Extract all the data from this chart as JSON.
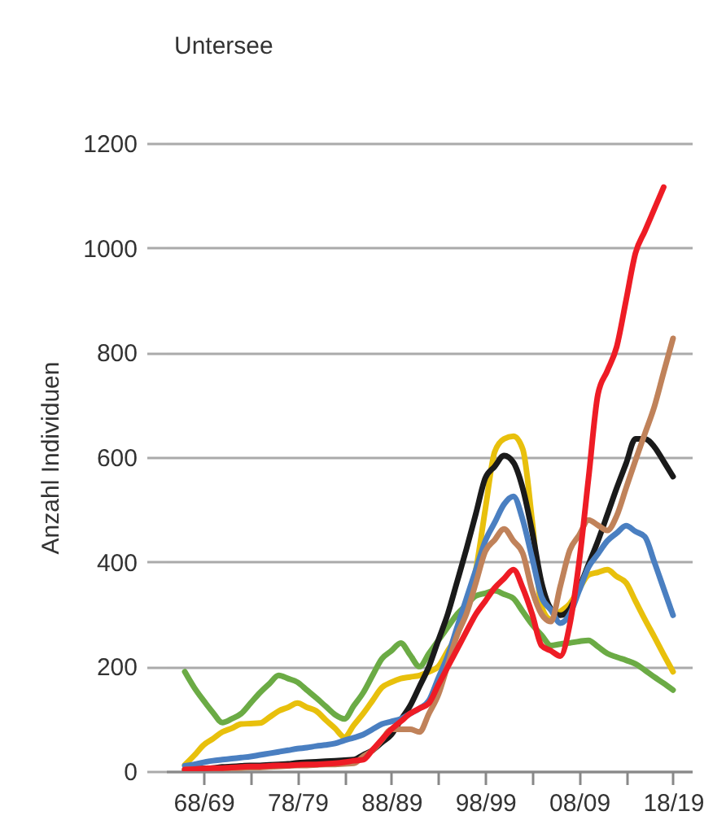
{
  "chart_data": {
    "type": "line",
    "title": "Untersee",
    "ylabel": "Anzahl Individuen",
    "ylim": [
      0,
      1200
    ],
    "yticks": [
      0,
      200,
      400,
      600,
      800,
      1000,
      1200
    ],
    "categories": [
      null,
      null,
      "68/69",
      null,
      null,
      null,
      null,
      null,
      null,
      null,
      null,
      null,
      "78/79",
      null,
      null,
      null,
      null,
      null,
      null,
      null,
      null,
      null,
      "88/89",
      null,
      null,
      null,
      null,
      null,
      null,
      null,
      null,
      null,
      "98/99",
      null,
      null,
      null,
      null,
      null,
      null,
      null,
      null,
      null,
      "08/09",
      null,
      null,
      null,
      null,
      null,
      null,
      null,
      null,
      null,
      "18/19"
    ],
    "grid": "y",
    "legend": false,
    "marker": "none",
    "line_style": "solid",
    "series": [
      {
        "color": "#6bab45",
        "values": [
          190,
          160,
          135,
          112,
          93,
          100,
          110,
          130,
          150,
          167,
          183,
          177,
          170,
          155,
          140,
          124,
          108,
          100,
          125,
          150,
          183,
          215,
          230,
          245,
          222,
          200,
          225,
          250,
          275,
          300,
          318,
          335,
          340,
          345,
          338,
          330,
          305,
          280,
          260,
          240,
          243,
          245,
          248,
          250,
          238,
          225,
          218,
          212,
          205,
          193,
          180,
          168,
          155
        ]
      },
      {
        "color": "#e8c00c",
        "values": [
          12,
          30,
          50,
          62,
          75,
          82,
          90,
          91,
          92,
          103,
          115,
          122,
          130,
          122,
          115,
          98,
          82,
          65,
          88,
          110,
          135,
          160,
          170,
          177,
          180,
          183,
          190,
          200,
          230,
          260,
          320,
          385,
          500,
          610,
          635,
          640,
          615,
          478,
          314,
          290,
          305,
          320,
          348,
          375,
          380,
          385,
          372,
          360,
          325,
          290,
          257,
          223,
          190
        ]
      },
      {
        "color": "#1a1a1a",
        "values": [
          3,
          4,
          5,
          6,
          8,
          9,
          10,
          11,
          11,
          12,
          13,
          14,
          16,
          17,
          18,
          19,
          20,
          21,
          22,
          31,
          40,
          55,
          70,
          98,
          125,
          162,
          200,
          250,
          300,
          362,
          425,
          492,
          560,
          582,
          603,
          590,
          540,
          457,
          360,
          310,
          298,
          310,
          350,
          395,
          440,
          490,
          541,
          588,
          635,
          635,
          620,
          592,
          563
        ]
      },
      {
        "color": "#4a7fc1",
        "values": [
          10,
          13,
          17,
          20,
          22,
          24,
          26,
          28,
          31,
          34,
          37,
          40,
          43,
          45,
          48,
          50,
          53,
          59,
          64,
          70,
          80,
          90,
          95,
          100,
          110,
          120,
          135,
          178,
          220,
          275,
          330,
          385,
          440,
          475,
          510,
          525,
          480,
          407,
          333,
          308,
          283,
          300,
          345,
          390,
          415,
          440,
          455,
          469,
          458,
          448,
          400,
          349,
          298
        ]
      },
      {
        "color": "#c0825a",
        "values": [
          3,
          4,
          4,
          5,
          5,
          6,
          6,
          7,
          7,
          8,
          9,
          10,
          11,
          11,
          12,
          13,
          13,
          14,
          15,
          28,
          40,
          60,
          80,
          80,
          80,
          75,
          110,
          146,
          203,
          260,
          301,
          360,
          420,
          442,
          463,
          440,
          416,
          345,
          300,
          286,
          354,
          422,
          451,
          480,
          470,
          460,
          488,
          541,
          594,
          645,
          696,
          762,
          827
        ]
      },
      {
        "color": "#ee1c25",
        "values": [
          3,
          4,
          5,
          6,
          6,
          7,
          8,
          9,
          9,
          10,
          11,
          11,
          12,
          13,
          13,
          14,
          15,
          17,
          20,
          22,
          41,
          61,
          80,
          95,
          110,
          120,
          130,
          165,
          199,
          233,
          267,
          300,
          325,
          350,
          368,
          385,
          350,
          300,
          240,
          230,
          220,
          280,
          400,
          560,
          720,
          765,
          811,
          900,
          990,
          1032,
          1074,
          1116,
          null
        ]
      }
    ]
  }
}
